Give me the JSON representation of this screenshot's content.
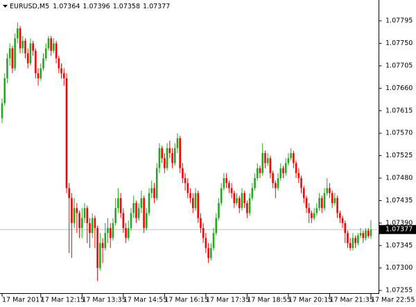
{
  "chart_data": {
    "type": "candlestick",
    "symbol": "EURUSD,M5",
    "up_color": "#1faa1f",
    "down_color": "#ff0000",
    "price_line_color": "#c0c0c0",
    "x": [
      "17 Mar 2017",
      null,
      null,
      null,
      null,
      null,
      null,
      null,
      null,
      null,
      null,
      null,
      null,
      null,
      null,
      "17 Mar 12:15",
      null,
      null,
      null,
      null,
      null,
      null,
      null,
      null,
      null,
      null,
      null,
      null,
      null,
      null,
      null,
      "17 Mar 13:35",
      null,
      null,
      null,
      null,
      null,
      null,
      null,
      null,
      null,
      null,
      null,
      null,
      null,
      null,
      null,
      "17 Mar 14:55",
      null,
      null,
      null,
      null,
      null,
      null,
      null,
      null,
      null,
      null,
      null,
      null,
      null,
      null,
      null,
      "17 Mar 16:15",
      null,
      null,
      null,
      null,
      null,
      null,
      null,
      null,
      null,
      null,
      null,
      null,
      null,
      null,
      null,
      "17 Mar 17:35",
      null,
      null,
      null,
      null,
      null,
      null,
      null,
      null,
      null,
      null,
      null,
      null,
      null,
      null,
      null,
      "17 Mar 18:55",
      null,
      null,
      null,
      null,
      null,
      null,
      null,
      null,
      null,
      null,
      null,
      null,
      null,
      null,
      null,
      "17 Mar 20:15",
      null,
      null,
      null,
      null,
      null,
      null,
      null,
      null,
      null,
      null,
      null,
      null,
      null,
      null,
      null,
      "17 Mar 21:35",
      null,
      null,
      null,
      null,
      null,
      null,
      null,
      null,
      null,
      null,
      null,
      null,
      null,
      null,
      null,
      "17 Mar 22:55"
    ],
    "open": [
      1.076,
      1.0763,
      1.0768,
      1.0772,
      1.0774,
      1.077,
      1.0776,
      1.0778,
      1.0774,
      1.07755,
      1.0773,
      1.0771,
      1.0775,
      1.07735,
      1.0769,
      1.0768,
      1.077,
      1.0772,
      1.0774,
      1.0776,
      1.07735,
      1.0775,
      1.0772,
      1.077,
      1.0769,
      1.0768,
      1.0746,
      1.0744,
      1.0739,
      1.0742,
      1.0741,
      1.0738,
      1.074,
      1.0742,
      1.0739,
      1.0737,
      1.074,
      1.0738,
      1.073,
      1.0735,
      1.0734,
      1.0737,
      1.0738,
      1.0736,
      1.0739,
      1.0742,
      1.0744,
      1.0741,
      1.0738,
      1.0736,
      1.0738,
      1.0741,
      1.0743,
      1.074,
      1.0742,
      1.0744,
      1.0738,
      1.0741,
      1.0745,
      1.0746,
      1.0744,
      1.075,
      1.0754,
      1.0752,
      1.075,
      1.0754,
      1.0753,
      1.0751,
      1.0754,
      1.0756,
      1.075,
      1.0748,
      1.0747,
      1.0745,
      1.0744,
      1.0742,
      1.0745,
      1.074,
      1.0738,
      1.0736,
      1.0734,
      1.0732,
      1.0734,
      1.0737,
      1.074,
      1.0743,
      1.0746,
      1.0748,
      1.0747,
      1.0746,
      1.0745,
      1.0743,
      1.0744,
      1.0742,
      1.0745,
      1.0743,
      1.0741,
      1.0744,
      1.0746,
      1.0748,
      1.075,
      1.0749,
      1.0753,
      1.0751,
      1.0752,
      1.0749,
      1.0747,
      1.0746,
      1.0748,
      1.075,
      1.0749,
      1.0751,
      1.0752,
      1.0753,
      1.0751,
      1.0749,
      1.0748,
      1.0746,
      1.0744,
      1.0742,
      1.0741,
      1.074,
      1.0741,
      1.0742,
      1.0744,
      1.0742,
      1.0745,
      1.0746,
      1.0745,
      1.0743,
      1.0744,
      1.0741,
      1.074,
      1.0739,
      1.0737,
      1.0735,
      1.0734,
      1.0736,
      1.0735,
      1.07365,
      1.0737,
      1.0736,
      1.07375,
      1.07364
    ],
    "high": [
      1.0764,
      1.0769,
      1.0773,
      1.0775,
      1.07745,
      1.0777,
      1.07792,
      1.07785,
      1.07765,
      1.0776,
      1.0774,
      1.0776,
      1.07755,
      1.0774,
      1.077,
      1.0771,
      1.0773,
      1.0775,
      1.07765,
      1.07765,
      1.0776,
      1.07755,
      1.07725,
      1.0771,
      1.077,
      1.0769,
      1.0747,
      1.0745,
      1.0744,
      1.0743,
      1.07415,
      1.0742,
      1.0743,
      1.07425,
      1.074,
      1.0741,
      1.07405,
      1.07385,
      1.0737,
      1.0736,
      1.0739,
      1.074,
      1.0739,
      1.074,
      1.0744,
      1.0746,
      1.0745,
      1.0742,
      1.0739,
      1.07395,
      1.0742,
      1.07445,
      1.07435,
      1.0743,
      1.07455,
      1.07445,
      1.0742,
      1.0746,
      1.07475,
      1.0747,
      1.0751,
      1.0755,
      1.07545,
      1.0753,
      1.0755,
      1.07555,
      1.0754,
      1.0755,
      1.0757,
      1.07565,
      1.0751,
      1.0749,
      1.0748,
      1.0746,
      1.0745,
      1.0746,
      1.07455,
      1.0741,
      1.0739,
      1.0737,
      1.0735,
      1.0735,
      1.0738,
      1.0741,
      1.0744,
      1.0747,
      1.0749,
      1.0749,
      1.07475,
      1.0747,
      1.07455,
      1.0745,
      1.07445,
      1.0746,
      1.07455,
      1.07435,
      1.0745,
      1.0747,
      1.0749,
      1.0751,
      1.07505,
      1.0755,
      1.07535,
      1.0753,
      1.07525,
      1.07495,
      1.07475,
      1.0749,
      1.0751,
      1.07505,
      1.0752,
      1.0753,
      1.0754,
      1.07535,
      1.07515,
      1.075,
      1.07485,
      1.07465,
      1.07445,
      1.0743,
      1.07415,
      1.0742,
      1.0743,
      1.0745,
      1.07445,
      1.0746,
      1.0748,
      1.0747,
      1.07455,
      1.0745,
      1.07445,
      1.07415,
      1.07405,
      1.07395,
      1.07375,
      1.0736,
      1.0737,
      1.07365,
      1.0737,
      1.0738,
      1.07375,
      1.0738,
      1.0738,
      1.07396
    ],
    "low": [
      1.0759,
      1.07625,
      1.0767,
      1.07705,
      1.0769,
      1.07695,
      1.0775,
      1.0773,
      1.0773,
      1.0772,
      1.077,
      1.07705,
      1.07725,
      1.0768,
      1.07665,
      1.07675,
      1.07695,
      1.07715,
      1.07735,
      1.07725,
      1.0773,
      1.0771,
      1.0769,
      1.0768,
      1.07665,
      1.0745,
      1.0733,
      1.0732,
      1.0738,
      1.0737,
      1.0736,
      1.0736,
      1.0739,
      1.0735,
      1.0734,
      1.0736,
      1.0734,
      1.07274,
      1.07295,
      1.0731,
      1.07335,
      1.0735,
      1.0734,
      1.07355,
      1.07385,
      1.0741,
      1.074,
      1.0737,
      1.0735,
      1.07355,
      1.07375,
      1.074,
      1.0739,
      1.07395,
      1.0741,
      1.0737,
      1.07375,
      1.07405,
      1.0744,
      1.0743,
      1.07435,
      1.0749,
      1.0751,
      1.0749,
      1.07495,
      1.0752,
      1.075,
      1.07505,
      1.0753,
      1.0749,
      1.0747,
      1.07455,
      1.0744,
      1.0743,
      1.0741,
      1.07415,
      1.0739,
      1.0737,
      1.0735,
      1.0733,
      1.0731,
      1.07315,
      1.07335,
      1.07365,
      1.07395,
      1.07425,
      1.07455,
      1.0746,
      1.0745,
      1.0744,
      1.0742,
      1.07425,
      1.0741,
      1.07415,
      1.0742,
      1.074,
      1.07405,
      1.07435,
      1.07455,
      1.07475,
      1.0748,
      1.07485,
      1.075,
      1.07505,
      1.0748,
      1.0746,
      1.0744,
      1.07455,
      1.07475,
      1.0748,
      1.07485,
      1.07505,
      1.07515,
      1.075,
      1.0748,
      1.0747,
      1.0745,
      1.0743,
      1.0741,
      1.0739,
      1.0739,
      1.07395,
      1.07405,
      1.07415,
      1.0741,
      1.07415,
      1.07445,
      1.0744,
      1.0742,
      1.07425,
      1.074,
      1.0739,
      1.0738,
      1.0735,
      1.0734,
      1.07335,
      1.07335,
      1.0734,
      1.07345,
      1.0736,
      1.0735,
      1.07355,
      1.0736,
      1.07358
    ],
    "close": [
      1.0763,
      1.0768,
      1.0772,
      1.0774,
      1.077,
      1.0776,
      1.0778,
      1.0774,
      1.07755,
      1.0773,
      1.0771,
      1.0775,
      1.07735,
      1.0769,
      1.0768,
      1.077,
      1.0772,
      1.0774,
      1.0776,
      1.07735,
      1.0775,
      1.0772,
      1.077,
      1.0769,
      1.0768,
      1.0746,
      1.0744,
      1.0739,
      1.0742,
      1.0741,
      1.0738,
      1.074,
      1.0742,
      1.0739,
      1.0737,
      1.074,
      1.0738,
      1.073,
      1.0735,
      1.0734,
      1.0737,
      1.0738,
      1.0736,
      1.0739,
      1.0742,
      1.0744,
      1.0741,
      1.0738,
      1.0736,
      1.0738,
      1.0741,
      1.0743,
      1.074,
      1.0742,
      1.0744,
      1.0738,
      1.0741,
      1.0745,
      1.0746,
      1.0744,
      1.075,
      1.0754,
      1.0752,
      1.075,
      1.0754,
      1.0753,
      1.0751,
      1.0754,
      1.0756,
      1.075,
      1.0748,
      1.0747,
      1.0745,
      1.0744,
      1.0742,
      1.0745,
      1.074,
      1.0738,
      1.0736,
      1.0734,
      1.0732,
      1.0734,
      1.0737,
      1.074,
      1.0743,
      1.0746,
      1.0748,
      1.0747,
      1.0746,
      1.0745,
      1.0743,
      1.0744,
      1.0742,
      1.0745,
      1.0743,
      1.0741,
      1.0744,
      1.0746,
      1.0748,
      1.075,
      1.0749,
      1.0753,
      1.0751,
      1.0752,
      1.0749,
      1.0747,
      1.0746,
      1.0748,
      1.075,
      1.0749,
      1.0751,
      1.0752,
      1.0753,
      1.0751,
      1.0749,
      1.0748,
      1.0746,
      1.0744,
      1.0742,
      1.0741,
      1.074,
      1.0741,
      1.0742,
      1.0744,
      1.0742,
      1.0745,
      1.0746,
      1.0745,
      1.0743,
      1.0744,
      1.0741,
      1.074,
      1.0739,
      1.0737,
      1.0735,
      1.0734,
      1.0736,
      1.0735,
      1.07365,
      1.0737,
      1.0736,
      1.07375,
      1.07364,
      1.07377
    ],
    "ylim": [
      1.07251,
      1.07834
    ],
    "yticks": [
      1.07795,
      {
        "value": 1.0775,
        "label": "1.07750"
      },
      1.07705,
      {
        "value": 1.0766,
        "label": "1.07660"
      },
      1.07615,
      {
        "value": 1.0757,
        "label": "1.07570"
      },
      1.07525,
      {
        "value": 1.0748,
        "label": "1.07480"
      },
      1.07435,
      {
        "value": 1.0739,
        "label": "1.07390"
      },
      1.07345,
      {
        "value": 1.073,
        "label": "1.07300"
      },
      1.07255
    ]
  }
}
